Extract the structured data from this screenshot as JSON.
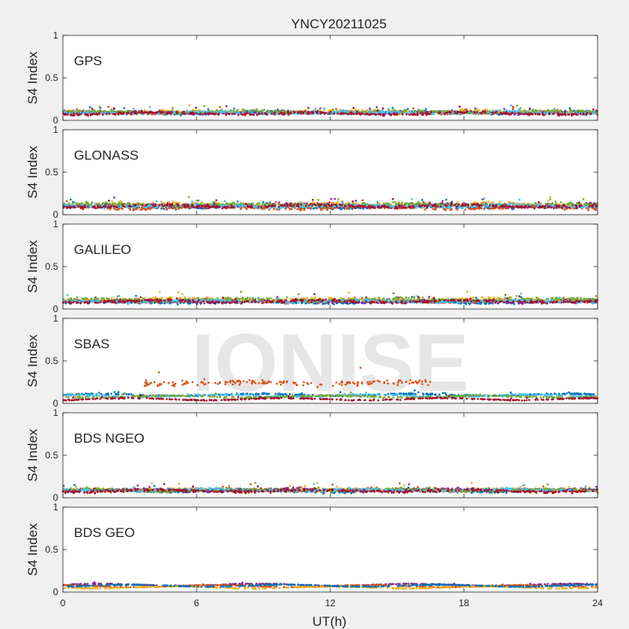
{
  "chart_data": {
    "type": "scatter",
    "title": "YNCY20211025",
    "xlabel": "UT(h)",
    "ylabel": "S4 Index",
    "xlim": [
      0,
      24
    ],
    "ylim": [
      0,
      1
    ],
    "xticks": [
      "0",
      "6",
      "12",
      "18",
      "24"
    ],
    "yticks": [
      "0",
      "0.5",
      "1"
    ],
    "grid": false,
    "watermark": "IONISE",
    "series_colors": [
      "#0072bd",
      "#d95319",
      "#edb120",
      "#7e2f8e",
      "#77ac30",
      "#4dbeee",
      "#a2142f"
    ],
    "panels": [
      {
        "label": "GPS",
        "series": [
          {
            "color": "#0072bd",
            "level": 0.09,
            "spread": 0.025
          },
          {
            "color": "#d95319",
            "level": 0.09,
            "spread": 0.025
          },
          {
            "color": "#edb120",
            "level": 0.1,
            "spread": 0.03
          },
          {
            "color": "#7e2f8e",
            "level": 0.09,
            "spread": 0.025
          },
          {
            "color": "#77ac30",
            "level": 0.1,
            "spread": 0.025
          },
          {
            "color": "#4dbeee",
            "level": 0.09,
            "spread": 0.025
          },
          {
            "color": "#a2142f",
            "level": 0.08,
            "spread": 0.025
          }
        ]
      },
      {
        "label": "GLONASS",
        "series": [
          {
            "color": "#0072bd",
            "level": 0.09,
            "spread": 0.03
          },
          {
            "color": "#d95319",
            "level": 0.08,
            "spread": 0.03
          },
          {
            "color": "#edb120",
            "level": 0.12,
            "spread": 0.035
          },
          {
            "color": "#7e2f8e",
            "level": 0.11,
            "spread": 0.035
          },
          {
            "color": "#77ac30",
            "level": 0.12,
            "spread": 0.035
          },
          {
            "color": "#4dbeee",
            "level": 0.1,
            "spread": 0.03
          },
          {
            "color": "#a2142f",
            "level": 0.1,
            "spread": 0.03
          }
        ]
      },
      {
        "label": "GALILEO",
        "series": [
          {
            "color": "#0072bd",
            "level": 0.08,
            "spread": 0.025
          },
          {
            "color": "#d95319",
            "level": 0.09,
            "spread": 0.03
          },
          {
            "color": "#edb120",
            "level": 0.11,
            "spread": 0.03
          },
          {
            "color": "#7e2f8e",
            "level": 0.09,
            "spread": 0.025
          },
          {
            "color": "#77ac30",
            "level": 0.11,
            "spread": 0.03
          },
          {
            "color": "#4dbeee",
            "level": 0.09,
            "spread": 0.025
          },
          {
            "color": "#a2142f",
            "level": 0.09,
            "spread": 0.025
          }
        ]
      },
      {
        "label": "SBAS",
        "series": [
          {
            "color": "#0072bd",
            "level": 0.1,
            "spread": 0.015
          },
          {
            "color": "#4dbeee",
            "level": 0.09,
            "spread": 0.015
          },
          {
            "color": "#77ac30",
            "level": 0.08,
            "spread": 0.015
          },
          {
            "color": "#a2142f",
            "level": 0.05,
            "spread": 0.01
          },
          {
            "color": "#d95319",
            "level": 0.24,
            "spread": 0.05,
            "x_range": [
              3.5,
              16.5
            ]
          }
        ]
      },
      {
        "label": "BDS NGEO",
        "series": [
          {
            "color": "#0072bd",
            "level": 0.08,
            "spread": 0.025
          },
          {
            "color": "#d95319",
            "level": 0.09,
            "spread": 0.025
          },
          {
            "color": "#edb120",
            "level": 0.09,
            "spread": 0.025
          },
          {
            "color": "#7e2f8e",
            "level": 0.09,
            "spread": 0.025
          },
          {
            "color": "#77ac30",
            "level": 0.09,
            "spread": 0.025
          },
          {
            "color": "#4dbeee",
            "level": 0.09,
            "spread": 0.025
          },
          {
            "color": "#a2142f",
            "level": 0.08,
            "spread": 0.025
          }
        ]
      },
      {
        "label": "BDS GEO",
        "series": [
          {
            "color": "#7e2f8e",
            "level": 0.085,
            "spread": 0.006
          },
          {
            "color": "#d95319",
            "level": 0.07,
            "spread": 0.006
          },
          {
            "color": "#edb120",
            "level": 0.055,
            "spread": 0.006
          },
          {
            "color": "#0072bd",
            "level": 0.075,
            "spread": 0.005
          }
        ]
      }
    ]
  }
}
